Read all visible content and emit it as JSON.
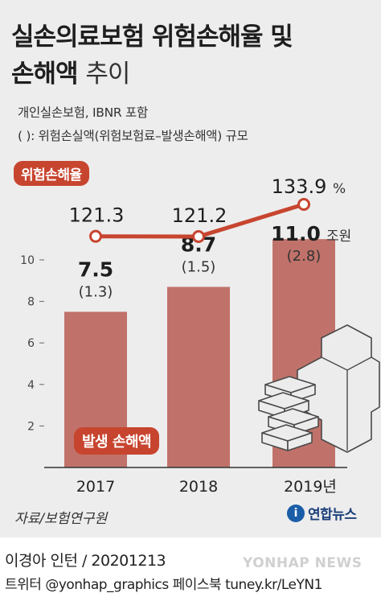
{
  "title_line1": "실손의료보험 위험손해율 및",
  "title_line2_bold": "손해액",
  "title_line2_light": "추이",
  "note_line1": "개인실손보험, IBNR 포함",
  "note_line2": "( ): 위험손실액(위험보험료–발생손해액) 규모",
  "loss_ratio_pill": "위험손해율",
  "loss_amount_pill": "발생 손해액",
  "source": "자료/보험연구원",
  "logo_mark": "i",
  "logo_name": "연합뉴스",
  "credit": "이경아 인턴 / 20201213",
  "social": "트위터 @yonhap_graphics  페이스북 tuney.kr/LeYN1",
  "watermark": "YONHAP NEWS",
  "colors": {
    "bar": "#c0726a",
    "line": "#c7452f",
    "pill": "#c7452f",
    "background": "#ededed"
  },
  "decoration_icon": "medical-cross-blocks-icon",
  "chart_data": {
    "type": "bar",
    "categories": [
      "2017",
      "2018",
      "2019년"
    ],
    "ylim": [
      0,
      11
    ],
    "yticks": [
      "10",
      "8",
      "6",
      "4",
      "2"
    ],
    "ytick_values": [
      10,
      8,
      6,
      4,
      2
    ],
    "grid": false,
    "bar_series": {
      "name": "발생 손해액",
      "values": [
        7.5,
        8.7,
        11.0
      ],
      "value_labels": [
        "7.5",
        "8.7",
        "11.0"
      ],
      "unit_on_last": "조원",
      "risk_loss_labels": [
        "(1.3)",
        "(1.5)",
        "(2.8)"
      ],
      "risk_loss_values": [
        1.3,
        1.5,
        2.8
      ]
    },
    "line_series": {
      "name": "위험손해율",
      "type": "line",
      "values": [
        121.3,
        121.2,
        133.9
      ],
      "value_labels": [
        "121.3",
        "121.2",
        "133.9"
      ],
      "unit_on_last": "%"
    }
  }
}
